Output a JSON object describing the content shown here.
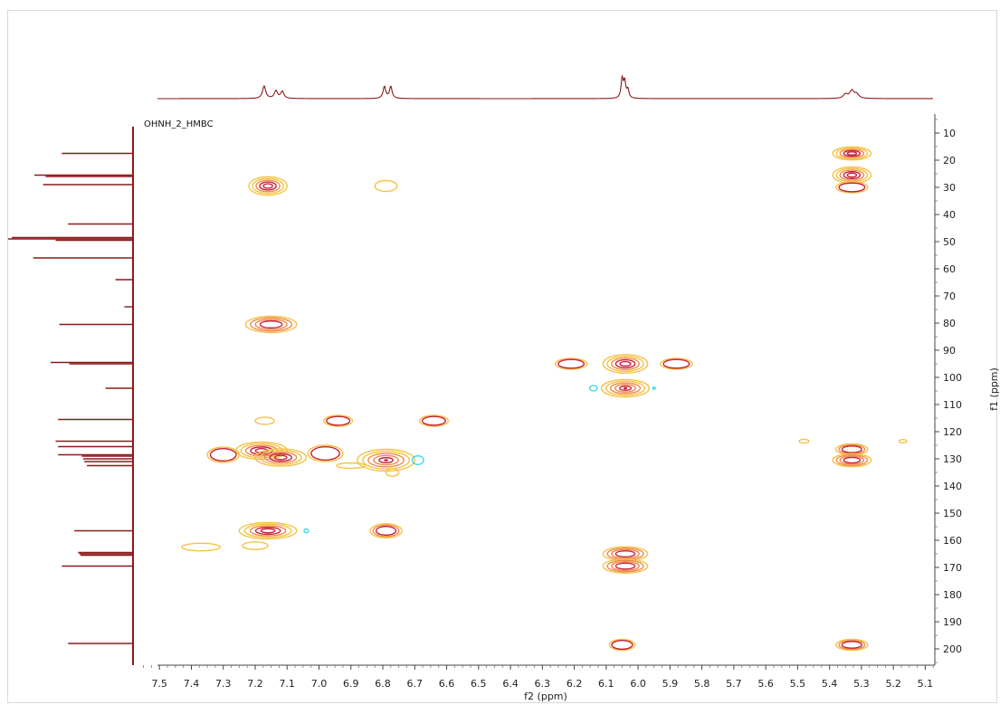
{
  "chart_data": {
    "type": "contour",
    "title": "OHNH_2_HMBC",
    "xlabel": "f2 (ppm)",
    "ylabel": "f1 (ppm)",
    "xlim": [
      7.58,
      5.07
    ],
    "ylim": [
      3,
      206
    ],
    "x_ticks": [
      7.5,
      7.4,
      7.3,
      7.2,
      7.1,
      7.0,
      6.9,
      6.8,
      6.7,
      6.6,
      6.5,
      6.4,
      6.3,
      6.2,
      6.1,
      6.0,
      5.9,
      5.8,
      5.7,
      5.6,
      5.5,
      5.4,
      5.3,
      5.2,
      5.1
    ],
    "y_ticks": [
      10,
      20,
      30,
      40,
      50,
      60,
      70,
      80,
      90,
      100,
      110,
      120,
      130,
      140,
      150,
      160,
      170,
      180,
      190,
      200
    ],
    "colors": {
      "positive_outer": "#f5c242",
      "positive_mid": "#f08a4b",
      "positive_inner": "#c8203a",
      "negative": "#33d6e6",
      "projection": "#8b1a1a"
    },
    "peaks": [
      {
        "x": 7.16,
        "y": 29.5,
        "sx": 0.06,
        "sy": 3.4,
        "levels": 5
      },
      {
        "x": 6.79,
        "y": 29.5,
        "sx": 0.035,
        "sy": 2.0,
        "levels": 1
      },
      {
        "x": 7.15,
        "y": 80.5,
        "sx": 0.08,
        "sy": 3.0,
        "levels": 4
      },
      {
        "x": 7.17,
        "y": 116,
        "sx": 0.03,
        "sy": 1.3,
        "levels": 1
      },
      {
        "x": 6.94,
        "y": 116,
        "sx": 0.045,
        "sy": 2.0,
        "levels": 2
      },
      {
        "x": 6.64,
        "y": 116,
        "sx": 0.045,
        "sy": 2.0,
        "levels": 2
      },
      {
        "x": 7.3,
        "y": 128.5,
        "sx": 0.05,
        "sy": 2.8,
        "levels": 2
      },
      {
        "x": 7.18,
        "y": 127,
        "sx": 0.08,
        "sy": 3.2,
        "levels": 5
      },
      {
        "x": 7.12,
        "y": 129.5,
        "sx": 0.08,
        "sy": 3.2,
        "levels": 5
      },
      {
        "x": 6.98,
        "y": 128,
        "sx": 0.055,
        "sy": 3.0,
        "levels": 2
      },
      {
        "x": 6.79,
        "y": 130.5,
        "sx": 0.09,
        "sy": 4.0,
        "levels": 6
      },
      {
        "x": 6.21,
        "y": 95,
        "sx": 0.05,
        "sy": 2.0,
        "levels": 2
      },
      {
        "x": 6.04,
        "y": 95,
        "sx": 0.07,
        "sy": 3.4,
        "levels": 5
      },
      {
        "x": 5.88,
        "y": 95,
        "sx": 0.05,
        "sy": 2.0,
        "levels": 2
      },
      {
        "x": 6.04,
        "y": 104,
        "sx": 0.075,
        "sy": 3.2,
        "levels": 6
      },
      {
        "x": 6.04,
        "y": 165,
        "sx": 0.07,
        "sy": 2.6,
        "levels": 4
      },
      {
        "x": 6.04,
        "y": 169.5,
        "sx": 0.07,
        "sy": 2.6,
        "levels": 4
      },
      {
        "x": 6.05,
        "y": 198.5,
        "sx": 0.04,
        "sy": 2.0,
        "levels": 2
      },
      {
        "x": 7.16,
        "y": 156.5,
        "sx": 0.09,
        "sy": 3.0,
        "levels": 5
      },
      {
        "x": 6.79,
        "y": 156.5,
        "sx": 0.05,
        "sy": 2.6,
        "levels": 3
      },
      {
        "x": 7.37,
        "y": 162.5,
        "sx": 0.06,
        "sy": 1.4,
        "levels": 1
      },
      {
        "x": 7.2,
        "y": 162,
        "sx": 0.04,
        "sy": 1.4,
        "levels": 1
      },
      {
        "x": 5.33,
        "y": 17.5,
        "sx": 0.06,
        "sy": 2.4,
        "levels": 5
      },
      {
        "x": 5.33,
        "y": 25.5,
        "sx": 0.06,
        "sy": 3.0,
        "levels": 5
      },
      {
        "x": 5.33,
        "y": 30,
        "sx": 0.05,
        "sy": 2.0,
        "levels": 2
      },
      {
        "x": 5.33,
        "y": 126.5,
        "sx": 0.05,
        "sy": 2.0,
        "levels": 3
      },
      {
        "x": 5.33,
        "y": 130.5,
        "sx": 0.06,
        "sy": 2.4,
        "levels": 4
      },
      {
        "x": 5.33,
        "y": 198.5,
        "sx": 0.05,
        "sy": 2.0,
        "levels": 3
      },
      {
        "x": 5.48,
        "y": 123.5,
        "sx": 0.015,
        "sy": 0.7,
        "levels": 1
      },
      {
        "x": 5.17,
        "y": 123.5,
        "sx": 0.012,
        "sy": 0.6,
        "levels": 1
      },
      {
        "x": 6.9,
        "y": 132.5,
        "sx": 0.045,
        "sy": 1.0,
        "levels": 1
      },
      {
        "x": 6.77,
        "y": 135,
        "sx": 0.02,
        "sy": 1.4,
        "levels": 1
      }
    ],
    "negative_peaks": [
      {
        "x": 6.69,
        "y": 130.5,
        "sx": 0.018,
        "sy": 1.6
      },
      {
        "x": 6.14,
        "y": 104,
        "sx": 0.012,
        "sy": 1.0
      },
      {
        "x": 7.04,
        "y": 156.5,
        "sx": 0.007,
        "sy": 0.7
      },
      {
        "x": 5.95,
        "y": 104,
        "sx": 0.004,
        "sy": 0.4
      }
    ],
    "f2_projection": [
      {
        "ppm": 7.172,
        "h": 0.9,
        "w": 0.006
      },
      {
        "ppm": 7.135,
        "h": 0.55,
        "w": 0.006
      },
      {
        "ppm": 7.115,
        "h": 0.5,
        "w": 0.006
      },
      {
        "ppm": 6.795,
        "h": 0.85,
        "w": 0.005
      },
      {
        "ppm": 6.775,
        "h": 0.85,
        "w": 0.005
      },
      {
        "ppm": 6.05,
        "h": 1.35,
        "w": 0.004
      },
      {
        "ppm": 6.042,
        "h": 1.15,
        "w": 0.004
      },
      {
        "ppm": 6.032,
        "h": 0.6,
        "w": 0.004
      },
      {
        "ppm": 5.35,
        "h": 0.3,
        "w": 0.008
      },
      {
        "ppm": 5.33,
        "h": 0.55,
        "w": 0.008
      },
      {
        "ppm": 5.315,
        "h": 0.3,
        "w": 0.008
      }
    ],
    "f1_projection": [
      {
        "ppm": 17.5,
        "h": 0.57
      },
      {
        "ppm": 25.5,
        "h": 0.79
      },
      {
        "ppm": 26,
        "h": 0.7
      },
      {
        "ppm": 29,
        "h": 0.72
      },
      {
        "ppm": 43.5,
        "h": 0.52
      },
      {
        "ppm": 48.5,
        "h": 0.97
      },
      {
        "ppm": 49,
        "h": 1.0
      },
      {
        "ppm": 49.5,
        "h": 0.62
      },
      {
        "ppm": 56,
        "h": 0.8
      },
      {
        "ppm": 64,
        "h": 0.14
      },
      {
        "ppm": 74,
        "h": 0.07
      },
      {
        "ppm": 80.5,
        "h": 0.59
      },
      {
        "ppm": 94.5,
        "h": 0.66
      },
      {
        "ppm": 95,
        "h": 0.51
      },
      {
        "ppm": 104,
        "h": 0.22
      },
      {
        "ppm": 115.5,
        "h": 0.6
      },
      {
        "ppm": 123.5,
        "h": 0.62
      },
      {
        "ppm": 125.5,
        "h": 0.6
      },
      {
        "ppm": 128.5,
        "h": 0.6
      },
      {
        "ppm": 129,
        "h": 0.41
      },
      {
        "ppm": 130,
        "h": 0.4
      },
      {
        "ppm": 131,
        "h": 0.39
      },
      {
        "ppm": 132.5,
        "h": 0.37
      },
      {
        "ppm": 156.5,
        "h": 0.47
      },
      {
        "ppm": 164.5,
        "h": 0.44
      },
      {
        "ppm": 165,
        "h": 0.43
      },
      {
        "ppm": 165.5,
        "h": 0.42
      },
      {
        "ppm": 169.5,
        "h": 0.57
      },
      {
        "ppm": 198,
        "h": 0.52
      }
    ]
  }
}
